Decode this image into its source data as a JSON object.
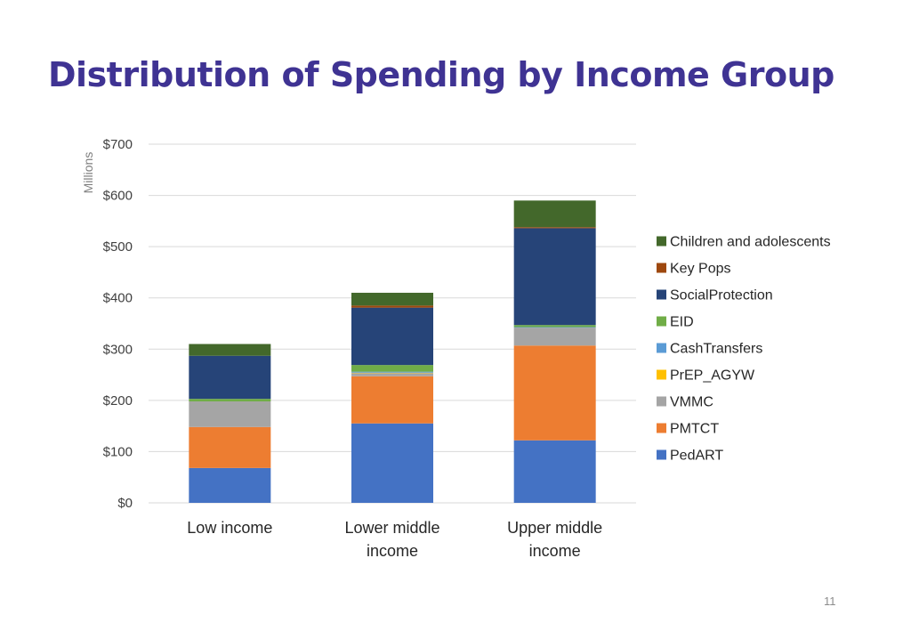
{
  "slide": {
    "title": "Distribution of Spending by Income Group",
    "page_number": "11"
  },
  "chart_data": {
    "type": "bar",
    "stacked": true,
    "title": "",
    "xlabel": "",
    "ylabel": "",
    "y_unit_label": "Millions",
    "ylim": [
      0,
      700
    ],
    "yticks": [
      0,
      100,
      200,
      300,
      400,
      500,
      600,
      700
    ],
    "ytick_labels": [
      "$0",
      "$100",
      "$200",
      "$300",
      "$400",
      "$500",
      "$600",
      "$700"
    ],
    "categories": [
      [
        "Low income"
      ],
      [
        "Lower middle",
        "income"
      ],
      [
        "Upper middle",
        "income"
      ]
    ],
    "grid": "horizontal",
    "legend_position": "right",
    "series": [
      {
        "name": "PedART",
        "color": "#4472c4",
        "values": [
          68,
          155,
          122
        ]
      },
      {
        "name": "PMTCT",
        "color": "#ed7d31",
        "values": [
          80,
          92,
          185
        ]
      },
      {
        "name": "VMMC",
        "color": "#a5a5a5",
        "values": [
          50,
          6,
          35
        ]
      },
      {
        "name": "PrEP_AGYW",
        "color": "#ffc000",
        "values": [
          0,
          1,
          0
        ]
      },
      {
        "name": "CashTransfers",
        "color": "#5b9bd5",
        "values": [
          0,
          2,
          1
        ]
      },
      {
        "name": "EID",
        "color": "#70ad47",
        "values": [
          5,
          13,
          4
        ]
      },
      {
        "name": "SocialProtection",
        "color": "#264478",
        "values": [
          84,
          112,
          189
        ]
      },
      {
        "name": "Key Pops",
        "color": "#9e480e",
        "values": [
          0,
          4,
          2
        ]
      },
      {
        "name": "Children and adolescents",
        "color": "#43682b",
        "values": [
          23,
          25,
          52
        ]
      }
    ]
  }
}
